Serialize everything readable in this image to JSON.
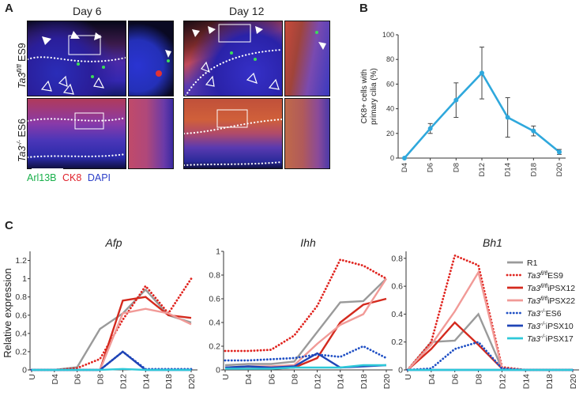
{
  "panel_a": {
    "letter": "A",
    "day_labels": [
      "Day 6",
      "Day 12"
    ],
    "row_labels": [
      {
        "main": "Ta3",
        "sup": "fl/fl",
        "suffix": " ES9"
      },
      {
        "main": "Ta3",
        "sup": "-/-",
        "suffix": " ES6"
      }
    ],
    "stains": [
      {
        "name": "Arl13B",
        "color": "#19b04b"
      },
      {
        "name": "CK8",
        "color": "#e0212b"
      },
      {
        "name": "DAPI",
        "color": "#2b3fc8"
      }
    ]
  },
  "panel_b": {
    "letter": "B",
    "chart_data": {
      "type": "line",
      "ylabel": "CK8+ cells with primary cilia (%)",
      "ylabel_lines": [
        "CK8+ cells with",
        "primary cilia (%)"
      ],
      "categories": [
        "D4",
        "D6",
        "D8",
        "D12",
        "D14",
        "D18",
        "D20"
      ],
      "values": [
        0,
        24,
        47,
        69,
        33,
        22,
        5
      ],
      "errors": [
        0,
        4,
        14,
        21,
        16,
        4,
        2
      ],
      "ylim": [
        0,
        100
      ],
      "yticks": [
        0,
        20,
        40,
        60,
        80,
        100
      ],
      "color": "#2fa8dc"
    }
  },
  "panel_c": {
    "letter": "C",
    "ylabel": "Relative expression",
    "legend": [
      {
        "main": "R1",
        "sup": "",
        "suffix": "",
        "color": "#9a9a9a",
        "dash": false
      },
      {
        "main": "Ta3",
        "sup": "fl/fl",
        "suffix": "ES9",
        "color": "#e0241f",
        "dash": true
      },
      {
        "main": "Ta3",
        "sup": "fl/fl",
        "suffix": "iPSX12",
        "color": "#d42a1e",
        "dash": false
      },
      {
        "main": "Ta3",
        "sup": "fl/fl",
        "suffix": "iPSX22",
        "color": "#f19a97",
        "dash": false
      },
      {
        "main": "Ta3",
        "sup": "-/-",
        "suffix": "ES6",
        "color": "#1f4fc4",
        "dash": true
      },
      {
        "main": "Ta3",
        "sup": "-/-",
        "suffix": "iPSX10",
        "color": "#1f44b6",
        "dash": false
      },
      {
        "main": "Ta3",
        "sup": "-/-",
        "suffix": "iPSX17",
        "color": "#2ec9d9",
        "dash": false
      }
    ],
    "chart_data": [
      {
        "type": "line",
        "title": "Afp",
        "categories": [
          "U",
          "D4",
          "D6",
          "D8",
          "D12",
          "D14",
          "D18",
          "D20"
        ],
        "ylim": [
          0,
          1.3
        ],
        "yticks": [
          0,
          0.2,
          0.4,
          0.6,
          0.8,
          1,
          1.2
        ],
        "series": [
          {
            "name": "R1",
            "values": [
              0,
              0,
              0.03,
              0.45,
              0.62,
              0.88,
              0.6,
              0.52
            ]
          },
          {
            "name": "Ta3fl/fl ES9",
            "values": [
              0,
              0,
              0.02,
              0.12,
              0.55,
              0.92,
              0.62,
              1.0
            ]
          },
          {
            "name": "Ta3fl/fl iPSX12",
            "values": [
              0,
              0,
              0,
              0,
              0.76,
              0.8,
              0.6,
              0.57
            ]
          },
          {
            "name": "Ta3fl/fl iPSX22",
            "values": [
              0,
              0,
              0,
              0,
              0.62,
              0.67,
              0.62,
              0.5
            ]
          },
          {
            "name": "Ta3-/- ES6",
            "values": [
              0,
              0,
              0,
              0,
              0.2,
              0.01,
              0.01,
              0.01
            ]
          },
          {
            "name": "Ta3-/- iPSX10",
            "values": [
              0,
              0,
              0,
              0,
              0.2,
              0,
              0,
              0
            ]
          },
          {
            "name": "Ta3-/- iPSX17",
            "values": [
              0,
              0,
              0,
              0,
              0.01,
              0,
              0,
              0
            ]
          }
        ]
      },
      {
        "type": "line",
        "title": "Ihh",
        "categories": [
          "U",
          "D4",
          "D6",
          "D8",
          "D12",
          "D14",
          "D18",
          "D20"
        ],
        "ylim": [
          0,
          1.0
        ],
        "yticks": [
          0,
          0.2,
          0.4,
          0.6,
          0.8,
          1
        ],
        "series": [
          {
            "name": "R1",
            "values": [
              0.04,
              0.05,
              0.05,
              0.07,
              0.32,
              0.57,
              0.58,
              0.77
            ]
          },
          {
            "name": "Ta3fl/fl ES9",
            "values": [
              0.16,
              0.16,
              0.17,
              0.29,
              0.54,
              0.93,
              0.88,
              0.77
            ]
          },
          {
            "name": "Ta3fl/fl iPSX12",
            "values": [
              0.01,
              0.01,
              0.01,
              0.02,
              0.1,
              0.4,
              0.55,
              0.6
            ]
          },
          {
            "name": "Ta3fl/fl iPSX22",
            "values": [
              0.02,
              0.03,
              0.03,
              0.04,
              0.22,
              0.38,
              0.47,
              0.77
            ]
          },
          {
            "name": "Ta3-/- ES6",
            "values": [
              0.08,
              0.08,
              0.09,
              0.1,
              0.13,
              0.11,
              0.2,
              0.1
            ]
          },
          {
            "name": "Ta3-/- iPSX10",
            "values": [
              0.02,
              0.03,
              0.02,
              0.03,
              0.14,
              0.02,
              0.03,
              0.04
            ]
          },
          {
            "name": "Ta3-/- iPSX17",
            "values": [
              0.01,
              0.01,
              0.01,
              0.02,
              0.02,
              0.02,
              0.04,
              0.04
            ]
          }
        ]
      },
      {
        "type": "line",
        "title": "Bh1",
        "categories": [
          "U",
          "D4",
          "D6",
          "D8",
          "D12",
          "D14",
          "D18",
          "D20"
        ],
        "ylim": [
          0,
          0.85
        ],
        "yticks": [
          0,
          0.2,
          0.4,
          0.6,
          0.8
        ],
        "series": [
          {
            "name": "R1",
            "values": [
              0,
              0.2,
              0.21,
              0.4,
              0.01,
              0,
              0,
              0
            ]
          },
          {
            "name": "Ta3fl/fl ES9",
            "values": [
              0,
              0.2,
              0.82,
              0.75,
              0.02,
              0,
              0,
              0
            ]
          },
          {
            "name": "Ta3fl/fl iPSX12",
            "values": [
              0,
              0.15,
              0.34,
              0.18,
              0.01,
              0,
              0,
              0
            ]
          },
          {
            "name": "Ta3fl/fl iPSX22",
            "values": [
              0,
              0.18,
              0.42,
              0.7,
              0.01,
              0,
              0,
              0
            ]
          },
          {
            "name": "Ta3-/- ES6",
            "values": [
              0,
              0.01,
              0.15,
              0.2,
              0.01,
              0,
              0,
              0
            ]
          },
          {
            "name": "Ta3-/- iPSX10",
            "values": [
              0,
              0,
              0,
              0,
              0,
              0,
              0,
              0
            ]
          },
          {
            "name": "Ta3-/- iPSX17",
            "values": [
              0,
              0,
              0,
              0,
              0,
              0,
              0,
              0
            ]
          }
        ]
      }
    ]
  }
}
